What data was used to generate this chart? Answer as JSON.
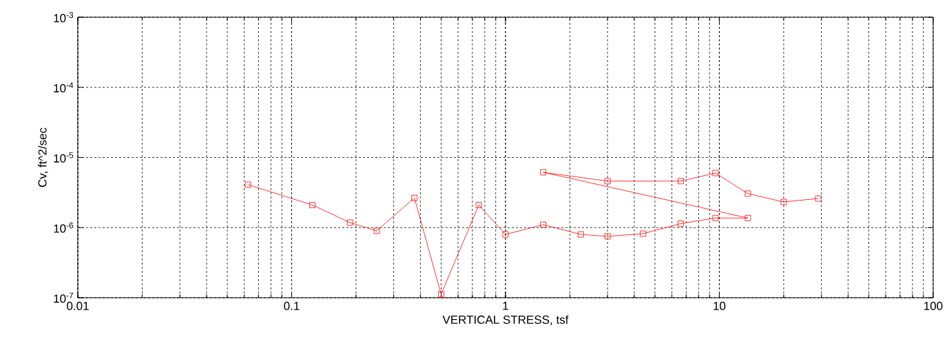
{
  "chart_data": {
    "type": "line",
    "xlabel": "VERTICAL STRESS, tsf",
    "ylabel": "Cv,  ft^2/sec",
    "x": [
      0.0625,
      0.125,
      0.1875,
      0.25,
      0.375,
      0.5,
      0.75,
      1.0,
      1.5,
      2.25,
      3.0,
      4.4,
      6.6,
      9.6,
      13.6,
      1.5,
      3.0,
      6.6,
      9.6,
      13.6,
      20,
      29
    ],
    "series": [
      {
        "color": "#ff0000",
        "values": [
          4.1e-06,
          2.1e-06,
          1.18e-06,
          9e-07,
          2.65e-06,
          1.12e-07,
          2.1e-06,
          8e-07,
          1.1e-06,
          8e-07,
          7.5e-07,
          8.2e-07,
          1.14e-06,
          1.37e-06,
          1.37e-06,
          6.15e-06,
          4.6e-06,
          4.6e-06,
          6e-06,
          3.05e-06,
          2.32e-06,
          2.6e-06
        ]
      }
    ],
    "log": "xy",
    "xlim": [
      0.01,
      100
    ],
    "ylim": [
      1e-07,
      0.001
    ],
    "xticks": [
      0.01,
      0.1,
      1,
      10,
      100
    ],
    "yticks": [
      {
        "value": 1e-07,
        "label": "10$^{-7}$"
      },
      {
        "value": 1e-06,
        "label": "10$^{-6}$"
      },
      {
        "value": 1e-05,
        "label": "10$^{-5}$"
      },
      {
        "value": 0.0001,
        "label": "10$^{-4}$"
      },
      {
        "value": 0.001,
        "label": "10$^{-3}$"
      }
    ],
    "grid": true,
    "marker": "square",
    "line_style": "solid"
  }
}
